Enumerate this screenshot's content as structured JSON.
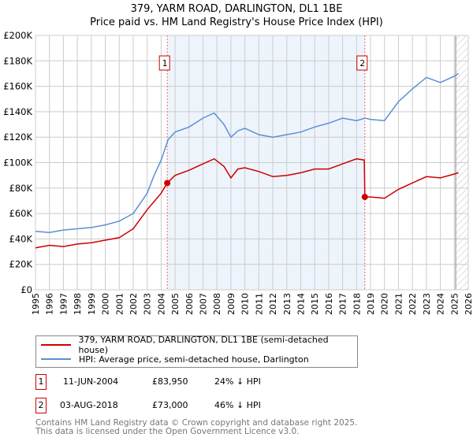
{
  "title": "379, YARM ROAD, DARLINGTON, DL1 1BE",
  "subtitle": "Price paid vs. HM Land Registry's House Price Index (HPI)",
  "colors": {
    "property": "#cc0000",
    "hpi": "#5b8fd4",
    "shade": "#eef4fc"
  },
  "chart_data": {
    "type": "line",
    "title": "379, YARM ROAD, DARLINGTON, DL1 1BE",
    "xlim": [
      1995,
      2026
    ],
    "ylim": [
      0,
      200000
    ],
    "x_ticks": [
      "1995",
      "1996",
      "1997",
      "1998",
      "1999",
      "2000",
      "2001",
      "2002",
      "2003",
      "2004",
      "2005",
      "2006",
      "2007",
      "2008",
      "2009",
      "2010",
      "2011",
      "2012",
      "2013",
      "2014",
      "2015",
      "2016",
      "2017",
      "2018",
      "2019",
      "2020",
      "2021",
      "2022",
      "2023",
      "2024",
      "2025",
      "2026"
    ],
    "y_ticks": [
      {
        "v": 0,
        "label": "£0"
      },
      {
        "v": 20000,
        "label": "£20K"
      },
      {
        "v": 40000,
        "label": "£40K"
      },
      {
        "v": 60000,
        "label": "£60K"
      },
      {
        "v": 80000,
        "label": "£80K"
      },
      {
        "v": 100000,
        "label": "£100K"
      },
      {
        "v": 120000,
        "label": "£120K"
      },
      {
        "v": 140000,
        "label": "£140K"
      },
      {
        "v": 160000,
        "label": "£160K"
      },
      {
        "v": 180000,
        "label": "£180K"
      },
      {
        "v": 200000,
        "label": "£200K"
      }
    ],
    "grid": true,
    "forecast_start": 2025.1,
    "series": [
      {
        "name": "379, YARM ROAD, DARLINGTON, DL1 1BE (semi-detached house)",
        "color": "#cc0000",
        "x": [
          1995,
          1996,
          1997,
          1998,
          1999,
          2000,
          2001,
          2002,
          2003,
          2004,
          2004.44,
          2005,
          2006,
          2007,
          2007.8,
          2008.5,
          2009,
          2009.5,
          2010,
          2011,
          2012,
          2013,
          2014,
          2015,
          2016,
          2017,
          2018,
          2018.55,
          2018.59,
          2019,
          2020,
          2021,
          2022,
          2023,
          2024,
          2025,
          2025.3
        ],
        "y": [
          33000,
          35000,
          34000,
          36000,
          37000,
          39000,
          41000,
          48000,
          63000,
          76000,
          83950,
          90000,
          94000,
          99000,
          103000,
          97000,
          88000,
          95000,
          96000,
          93000,
          89000,
          90000,
          92000,
          95000,
          95000,
          99000,
          103000,
          102000,
          73000,
          73000,
          72000,
          79000,
          84000,
          89000,
          88000,
          91000,
          92000
        ]
      },
      {
        "name": "HPI: Average price, semi-detached house, Darlington",
        "color": "#5b8fd4",
        "x": [
          1995,
          1996,
          1997,
          1998,
          1999,
          2000,
          2001,
          2002,
          2003,
          2003.5,
          2004,
          2004.5,
          2005,
          2006,
          2007,
          2007.8,
          2008.5,
          2009,
          2009.5,
          2010,
          2011,
          2012,
          2013,
          2014,
          2015,
          2016,
          2017,
          2018,
          2018.6,
          2019,
          2020,
          2021,
          2022,
          2023,
          2024,
          2025,
          2025.3
        ],
        "y": [
          46000,
          45000,
          47000,
          48000,
          49000,
          51000,
          54000,
          60000,
          76000,
          90000,
          102000,
          118000,
          124000,
          128000,
          135000,
          139000,
          130000,
          120000,
          125000,
          127000,
          122000,
          120000,
          122000,
          124000,
          128000,
          131000,
          135000,
          133000,
          135000,
          134000,
          133000,
          148000,
          158000,
          167000,
          163000,
          168000,
          170000
        ]
      }
    ],
    "annotations": [
      {
        "label": "1",
        "x": 2004.44,
        "y": 83950
      },
      {
        "label": "2",
        "x": 2018.59,
        "y": 73000
      }
    ]
  },
  "legend": {
    "property": "379, YARM ROAD, DARLINGTON, DL1 1BE (semi-detached house)",
    "hpi": "HPI: Average price, semi-detached house, Darlington"
  },
  "transactions": [
    {
      "num": "1",
      "date": "11-JUN-2004",
      "price": "£83,950",
      "hpi": "24% ↓ HPI"
    },
    {
      "num": "2",
      "date": "03-AUG-2018",
      "price": "£73,000",
      "hpi": "46% ↓ HPI"
    }
  ],
  "footer": {
    "line1": "Contains HM Land Registry data © Crown copyright and database right 2025.",
    "line2": "This data is licensed under the Open Government Licence v3.0."
  }
}
